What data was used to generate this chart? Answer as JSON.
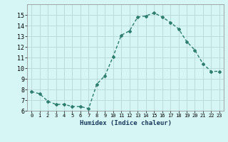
{
  "x": [
    0,
    1,
    2,
    3,
    4,
    5,
    6,
    7,
    8,
    9,
    10,
    11,
    12,
    13,
    14,
    15,
    16,
    17,
    18,
    19,
    20,
    21,
    22,
    23
  ],
  "y": [
    7.8,
    7.6,
    6.9,
    6.6,
    6.6,
    6.4,
    6.4,
    6.2,
    8.5,
    9.3,
    11.1,
    13.1,
    13.5,
    14.8,
    14.9,
    15.2,
    14.8,
    14.3,
    13.7,
    12.5,
    11.7,
    10.4,
    9.7,
    9.7
  ],
  "line_color": "#2e7d6e",
  "marker": "D",
  "marker_size": 2,
  "bg_color": "#d6f5f5",
  "grid_color": "#b8d8d8",
  "xlabel": "Humidex (Indice chaleur)",
  "ylim": [
    6,
    16
  ],
  "xlim": [
    -0.5,
    23.5
  ],
  "yticks": [
    6,
    7,
    8,
    9,
    10,
    11,
    12,
    13,
    14,
    15
  ],
  "xticks": [
    0,
    1,
    2,
    3,
    4,
    5,
    6,
    7,
    8,
    9,
    10,
    11,
    12,
    13,
    14,
    15,
    16,
    17,
    18,
    19,
    20,
    21,
    22,
    23
  ]
}
